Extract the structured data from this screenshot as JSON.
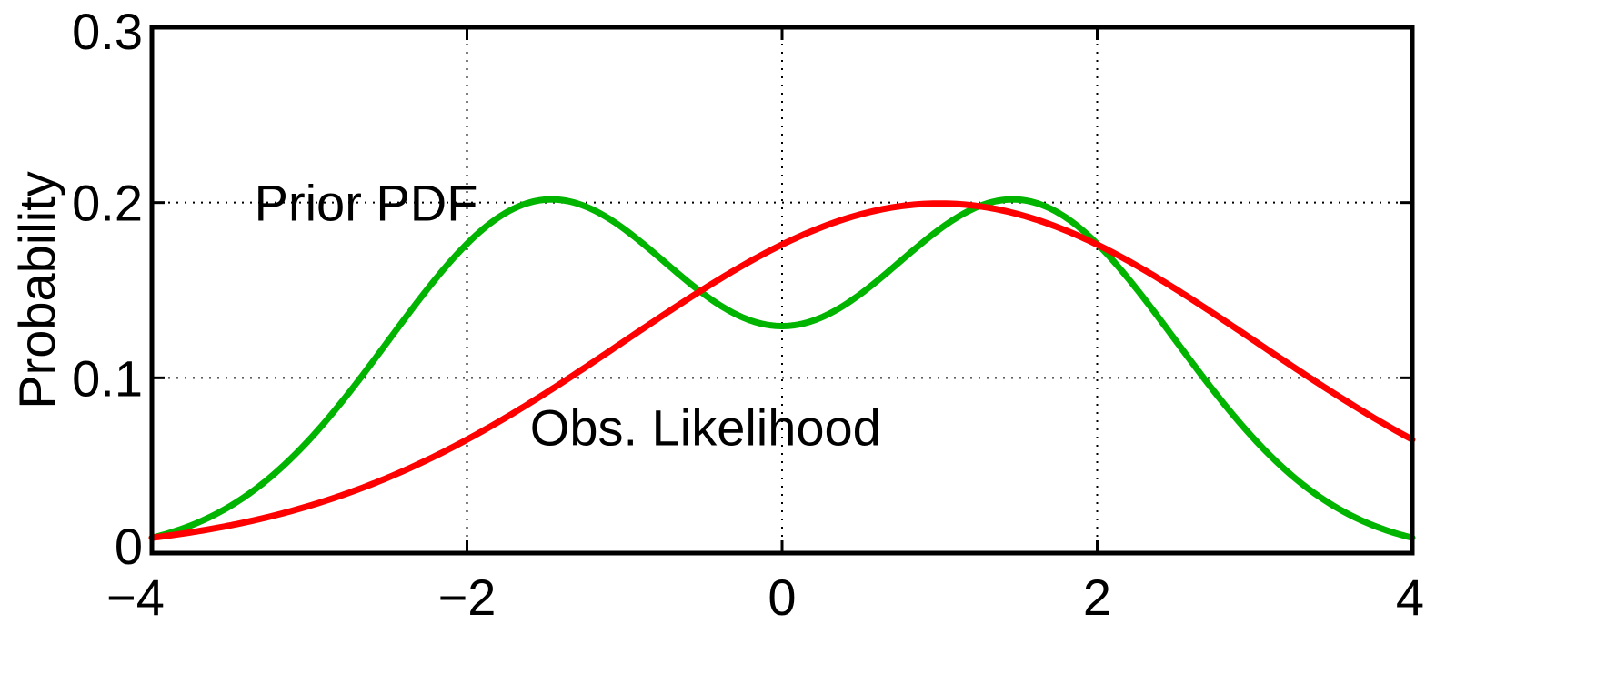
{
  "chart_data": {
    "type": "line",
    "title": "",
    "xlabel": "",
    "ylabel": "Probability",
    "xlim": [
      -4,
      4
    ],
    "ylim": [
      0,
      0.3
    ],
    "x_ticks": [
      -4,
      -2,
      0,
      2,
      4
    ],
    "y_ticks": [
      0,
      0.1,
      0.2,
      0.3
    ],
    "x_tick_labels": [
      "−4",
      "−2",
      "0",
      "2",
      "4"
    ],
    "y_tick_labels": [
      "0",
      "0.1",
      "0.2",
      "0.3"
    ],
    "grid": true,
    "series": [
      {
        "name": "Prior PDF",
        "color": "#00b400",
        "model": "mixture of two equal-weight Gaussians",
        "means": [
          -1.5,
          1.5
        ],
        "std": 1.0
      },
      {
        "name": "Obs. Likelihood",
        "color": "#ff0000",
        "model": "Gaussian",
        "mean": 1.0,
        "std": 2.0
      }
    ],
    "annotations": [
      {
        "text": "Prior PDF",
        "x": -3.35,
        "y": 0.2,
        "series": 0
      },
      {
        "text": "Obs. Likelihood",
        "x": -1.6,
        "y": 0.072,
        "series": 1
      }
    ]
  }
}
